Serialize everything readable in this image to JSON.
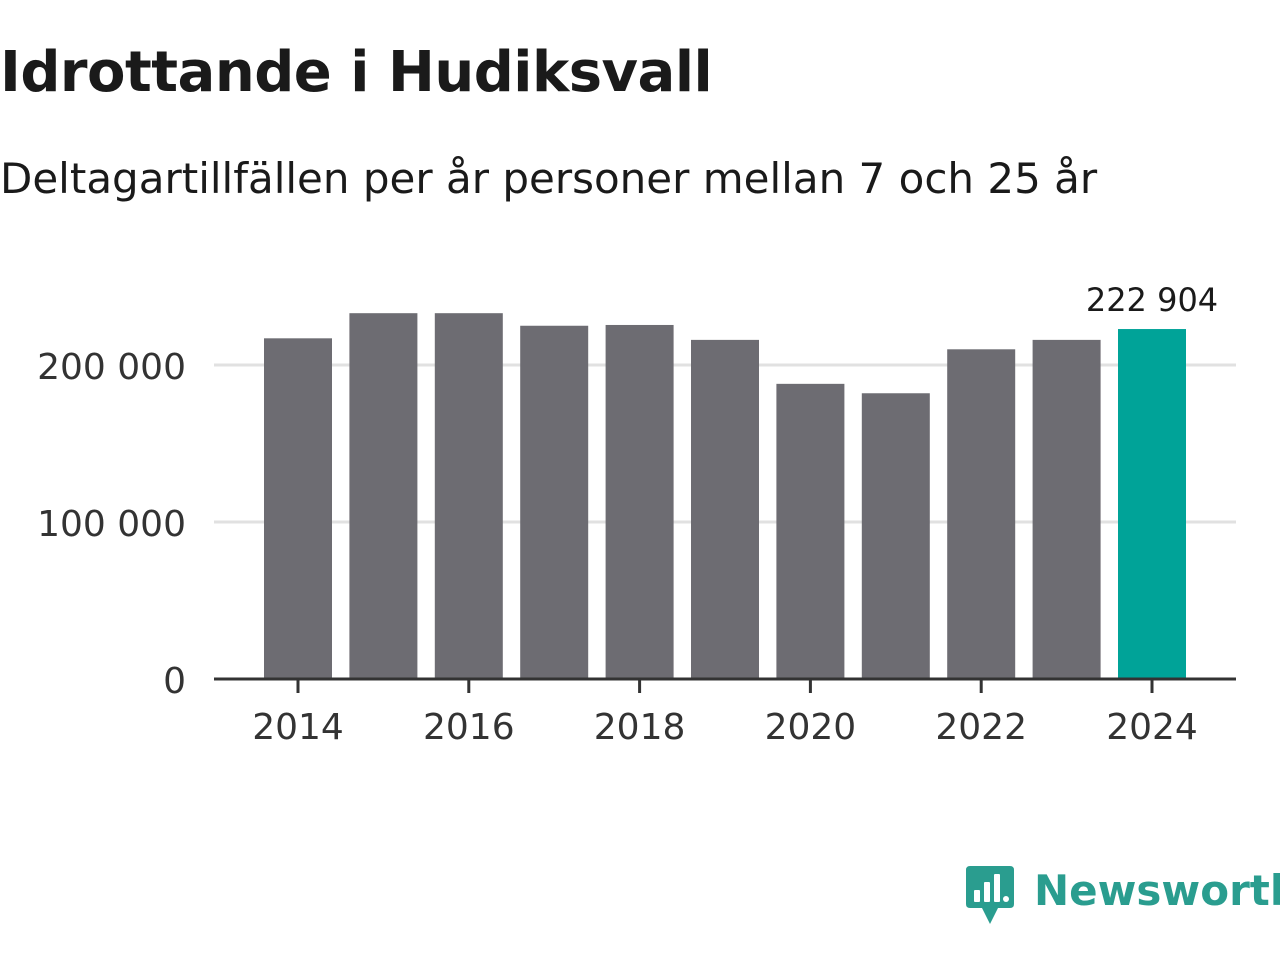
{
  "header": {
    "title": "Idrottande i Hudiksvall",
    "subtitle": "Deltagartillfällen per år personer mellan 7 och 25 år"
  },
  "chart_data": {
    "type": "bar",
    "title": "Idrottande i Hudiksvall",
    "subtitle": "Deltagartillfällen per år personer mellan 7 och 25 år",
    "xlabel": "",
    "ylabel": "",
    "categories": [
      "2014",
      "2015",
      "2016",
      "2017",
      "2018",
      "2019",
      "2020",
      "2021",
      "2022",
      "2023",
      "2024"
    ],
    "values": [
      217000,
      233000,
      233000,
      225000,
      225500,
      216000,
      188000,
      182000,
      210000,
      216000,
      222904
    ],
    "ylim": [
      0,
      250000
    ],
    "yticks": [
      0,
      100000,
      200000
    ],
    "ytick_labels": [
      "0",
      "100 000",
      "200 000"
    ],
    "xtick_labels": [
      "2014",
      "2016",
      "2018",
      "2020",
      "2022",
      "2024"
    ],
    "highlight_index": 10,
    "highlight_label": "222 904",
    "grid": true,
    "colors": {
      "bar": "#6d6c72",
      "highlight": "#00a398",
      "grid": "#e1e1e1",
      "axis": "#333333",
      "text": "#333333"
    }
  },
  "brand": {
    "name": "Newsworthy",
    "icon": "newsworthy-logo-icon",
    "color": "#2a9d8f"
  }
}
